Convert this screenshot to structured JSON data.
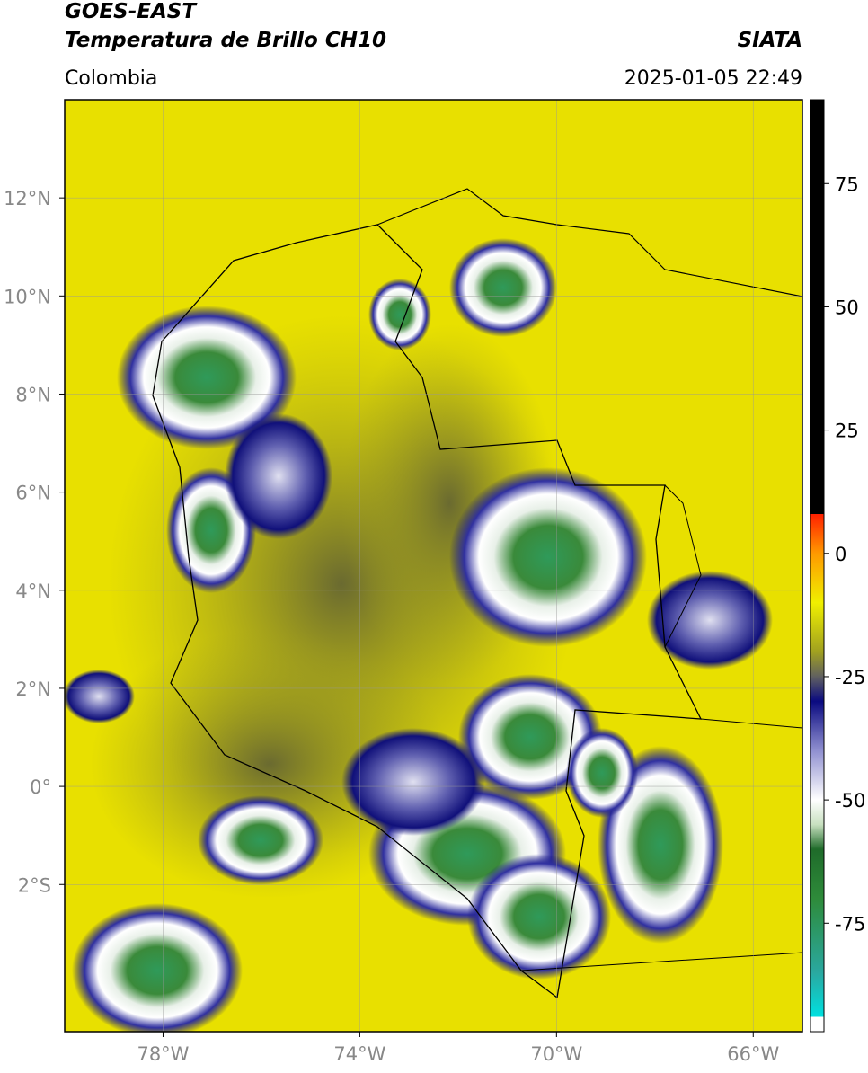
{
  "header": {
    "satellite": "GOES-EAST",
    "product": "Temperatura de Brillo CH10",
    "source": "SIATA",
    "region": "Colombia",
    "datetime": "2025-01-05 22:49"
  },
  "map": {
    "lon_range": [
      -80,
      -65
    ],
    "lat_range": [
      -5,
      14
    ],
    "grid": true,
    "lon_ticks": [
      {
        "value": -78,
        "label": "78°W"
      },
      {
        "value": -74,
        "label": "74°W"
      },
      {
        "value": -70,
        "label": "70°W"
      },
      {
        "value": -66,
        "label": "66°W"
      }
    ],
    "lat_ticks": [
      {
        "value": 12,
        "label": "12°N"
      },
      {
        "value": 10,
        "label": "10°N"
      },
      {
        "value": 8,
        "label": "8°N"
      },
      {
        "value": 6,
        "label": "6°N"
      },
      {
        "value": 4,
        "label": "4°N"
      },
      {
        "value": 2,
        "label": "2°N"
      },
      {
        "value": 0,
        "label": "0°"
      },
      {
        "value": -2,
        "label": "2°S"
      }
    ]
  },
  "colorbar": {
    "range": [
      -97,
      92
    ],
    "ticks": [
      75,
      50,
      25,
      0,
      -25,
      -50,
      -75
    ],
    "colors": [
      [
        -97,
        "#ffffff"
      ],
      [
        -94,
        "#ffffff"
      ],
      [
        -94,
        "#00e0e0"
      ],
      [
        -85,
        "#2aa8a0"
      ],
      [
        -70,
        "#2e8b3a"
      ],
      [
        -60,
        "#1f6b2a"
      ],
      [
        -55,
        "#c8e0c0"
      ],
      [
        -50,
        "#ffffff"
      ],
      [
        -40,
        "#9090d0"
      ],
      [
        -30,
        "#0a0a80"
      ],
      [
        -25,
        "#606060"
      ],
      [
        -20,
        "#a0a020"
      ],
      [
        -10,
        "#f0f000"
      ],
      [
        0,
        "#ff9900"
      ],
      [
        8,
        "#ff2000"
      ],
      [
        8,
        "#000000"
      ],
      [
        92,
        "#000000"
      ]
    ]
  }
}
